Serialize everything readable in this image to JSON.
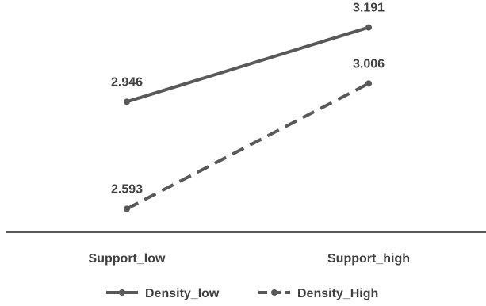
{
  "chart_data": {
    "type": "line",
    "categories": [
      "Support_low",
      "Support_high"
    ],
    "series": [
      {
        "name": "Density_low",
        "values": [
          2.946,
          3.191
        ],
        "style": "solid",
        "color": "#595959"
      },
      {
        "name": "Density_High",
        "values": [
          2.593,
          3.006
        ],
        "style": "dashed",
        "color": "#595959"
      }
    ],
    "data_labels": {
      "Density_low": [
        "2.946",
        "3.191"
      ],
      "Density_High": [
        "2.593",
        "3.006"
      ]
    },
    "ylim": [
      2.5,
      3.25
    ],
    "y_axis_visible": false,
    "grid": false,
    "legend_position": "bottom",
    "axis_color": "#595959"
  }
}
